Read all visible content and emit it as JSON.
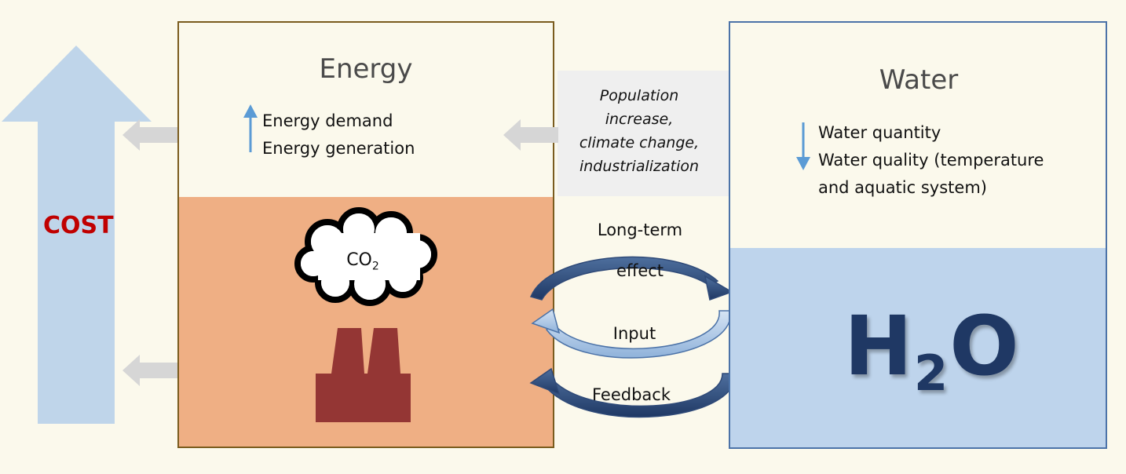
{
  "cost": {
    "label": "COST"
  },
  "energy": {
    "title": "Energy",
    "items": [
      "Energy demand",
      "Energy generation"
    ],
    "co2": {
      "text": "CO",
      "sub": "2"
    }
  },
  "water": {
    "title": "Water",
    "items": [
      "Water quantity",
      "Water quality (temperature",
      "and aquatic system)"
    ],
    "h2o": {
      "h": "H",
      "sub": "2",
      "o": "O"
    }
  },
  "drivers": {
    "lines": [
      "Population",
      "increase,",
      "climate change,",
      "industrialization"
    ]
  },
  "cycle": {
    "long_term_1": "Long-term",
    "long_term_2": "effect",
    "input": "Input",
    "feedback": "Feedback"
  },
  "colors": {
    "background": "#FBF9EC",
    "energy_border": "#7A5C1E",
    "energy_fill": "#EFAF84",
    "water_border": "#4C73A8",
    "water_fill": "#BED4EC",
    "cost_arrow": "#BFD5EA",
    "cost_text": "#C00000",
    "h2o_text": "#1F3864",
    "factory": "#943634",
    "gray_arrow": "#D6D6D6"
  }
}
